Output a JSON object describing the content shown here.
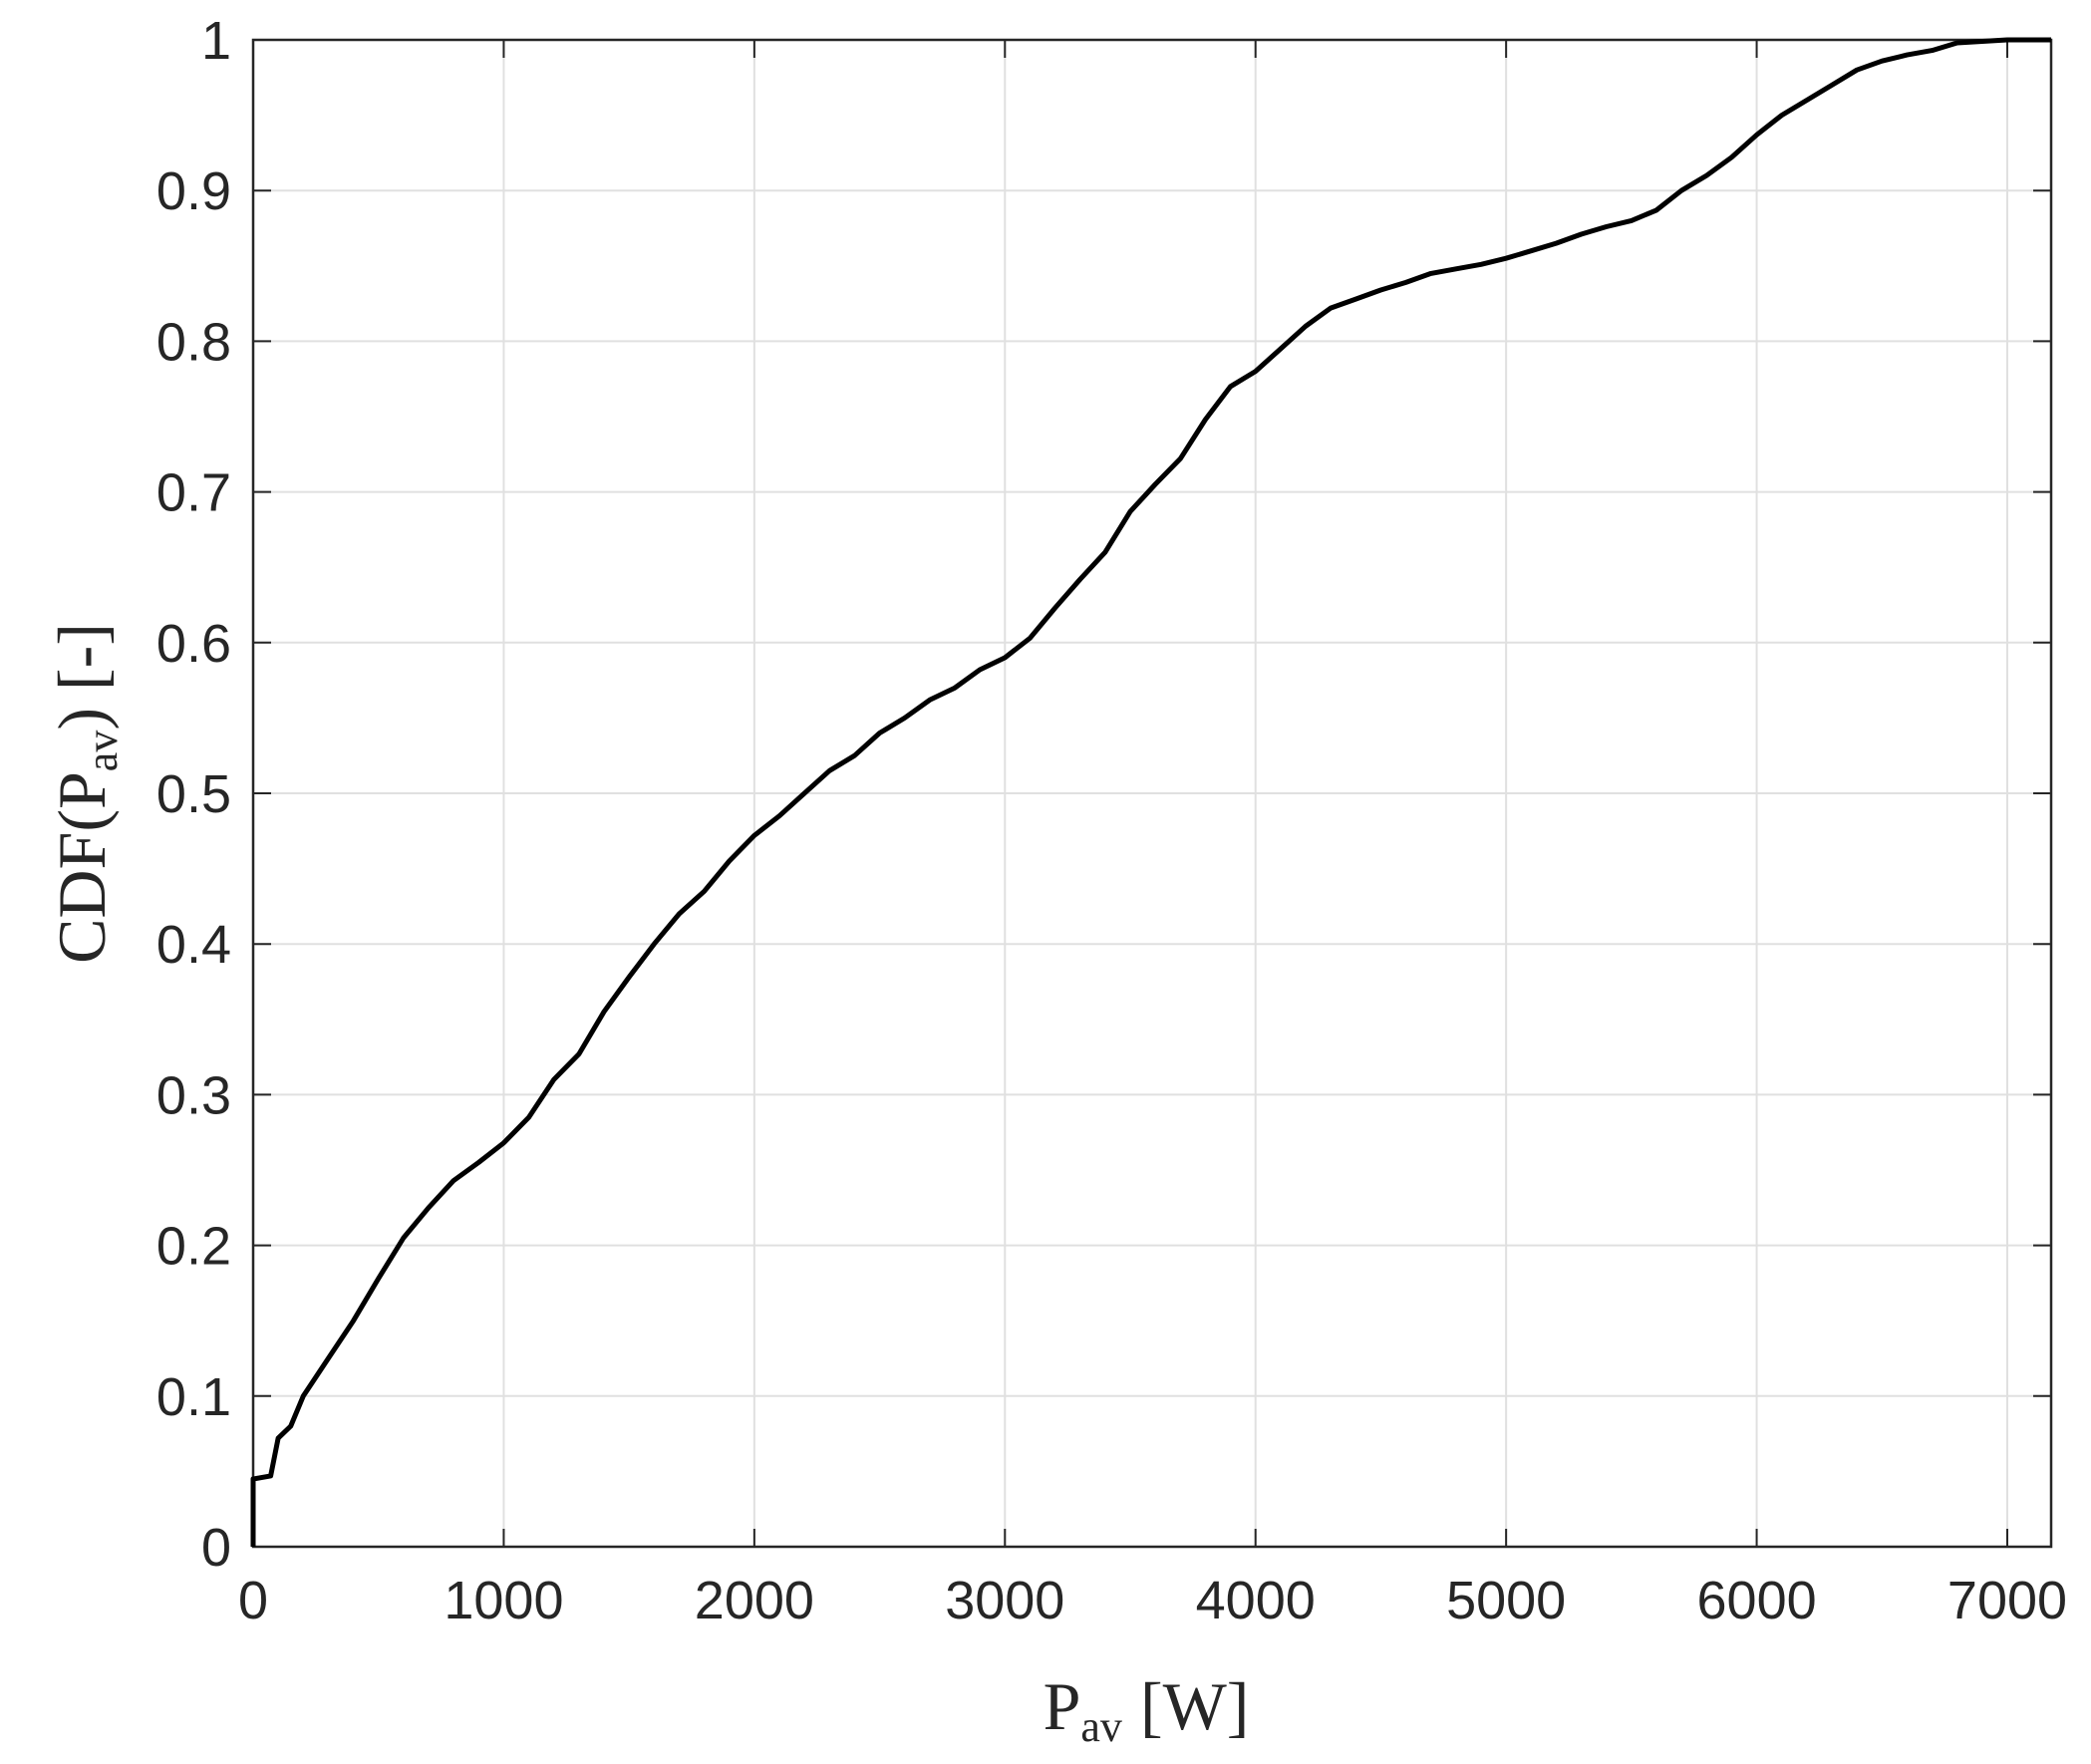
{
  "chart_data": {
    "type": "line",
    "xlabel": {
      "main": "P",
      "sub": "av",
      "unit": "[W]"
    },
    "ylabel": {
      "main": "CDF(P",
      "sub": "av",
      "unit": ") [-]"
    },
    "xlim": [
      0,
      7175
    ],
    "ylim": [
      0,
      1
    ],
    "xticks": [
      0,
      1000,
      2000,
      3000,
      4000,
      5000,
      6000,
      7000
    ],
    "yticks": [
      0,
      0.1,
      0.2,
      0.3,
      0.4,
      0.5,
      0.6,
      0.7,
      0.8,
      0.9,
      1
    ],
    "grid": true,
    "series": [
      {
        "color": "#000000",
        "x": [
          0,
          0,
          70,
          100,
          150,
          200,
          300,
          400,
          500,
          600,
          700,
          800,
          900,
          1000,
          1100,
          1200,
          1300,
          1400,
          1500,
          1600,
          1700,
          1800,
          1900,
          2000,
          2100,
          2200,
          2300,
          2400,
          2500,
          2600,
          2700,
          2800,
          2900,
          3000,
          3100,
          3200,
          3300,
          3400,
          3500,
          3600,
          3700,
          3800,
          3900,
          4000,
          4100,
          4200,
          4300,
          4400,
          4500,
          4600,
          4700,
          4800,
          4900,
          5000,
          5100,
          5200,
          5300,
          5400,
          5500,
          5600,
          5700,
          5800,
          5900,
          6000,
          6100,
          6200,
          6300,
          6400,
          6500,
          6600,
          6700,
          6800,
          6900,
          7000,
          7175
        ],
        "values": [
          0,
          0.045,
          0.047,
          0.072,
          0.08,
          0.1,
          0.125,
          0.15,
          0.178,
          0.205,
          0.225,
          0.243,
          0.255,
          0.268,
          0.285,
          0.31,
          0.327,
          0.355,
          0.378,
          0.4,
          0.42,
          0.435,
          0.455,
          0.472,
          0.485,
          0.5,
          0.515,
          0.525,
          0.54,
          0.55,
          0.562,
          0.57,
          0.582,
          0.59,
          0.603,
          0.623,
          0.642,
          0.66,
          0.687,
          0.705,
          0.722,
          0.748,
          0.77,
          0.78,
          0.795,
          0.81,
          0.822,
          0.828,
          0.834,
          0.839,
          0.845,
          0.848,
          0.851,
          0.855,
          0.86,
          0.865,
          0.871,
          0.876,
          0.88,
          0.887,
          0.9,
          0.91,
          0.922,
          0.937,
          0.95,
          0.96,
          0.97,
          0.98,
          0.986,
          0.99,
          0.993,
          0.998,
          0.999,
          1,
          1
        ]
      }
    ]
  }
}
